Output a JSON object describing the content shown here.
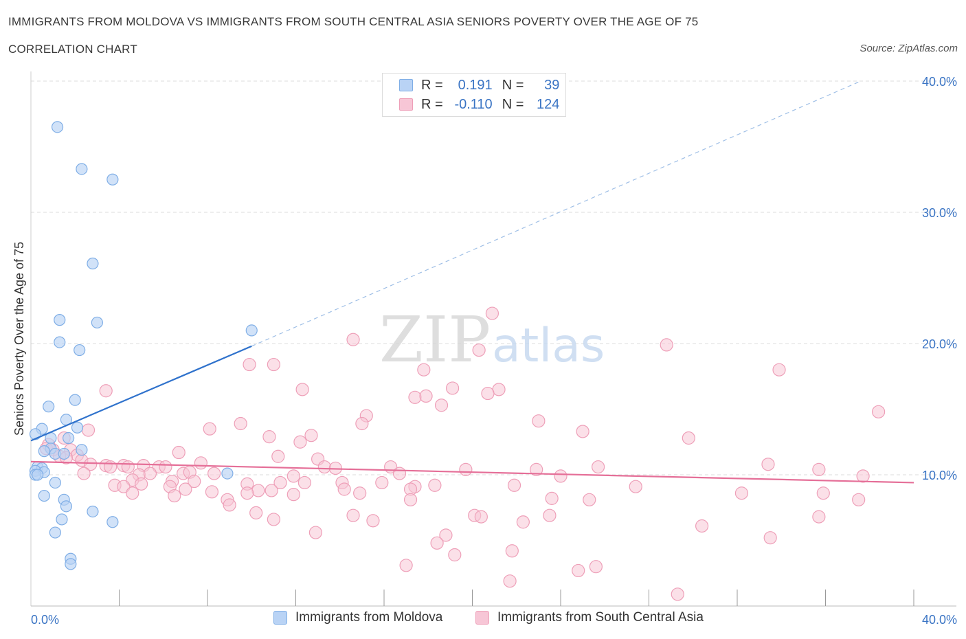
{
  "header": {
    "title": "IMMIGRANTS FROM MOLDOVA VS IMMIGRANTS FROM SOUTH CENTRAL ASIA SENIORS POVERTY OVER THE AGE OF 75",
    "subtitle": "CORRELATION CHART",
    "source": "Source: ZipAtlas.com"
  },
  "legend": {
    "rows": [
      {
        "r_label": "R =",
        "r_value": "0.191",
        "n_label": "N =",
        "n_value": "39"
      },
      {
        "r_label": "R =",
        "r_value": "-0.110",
        "n_label": "N =",
        "n_value": "124"
      }
    ]
  },
  "watermark": {
    "zip": "ZIP",
    "atlas": "atlas"
  },
  "colors": {
    "moldova_fill": "#b9d3f5",
    "moldova_stroke": "#7faee6",
    "moldova_line": "#2f72cc",
    "sca_fill": "#f7c6d6",
    "sca_stroke": "#ee9fb8",
    "sca_line": "#e56f98",
    "axis_label": "#3a74c4",
    "grid": "#dddddd"
  },
  "chart_data": {
    "type": "scatter",
    "ylabel": "Seniors Poverty Over the Age of 75",
    "xlabel": "",
    "xlim": [
      0,
      40
    ],
    "ylim": [
      0,
      40
    ],
    "x_ticks": [
      "0.0%",
      "40.0%"
    ],
    "y_ticks": [
      "10.0%",
      "20.0%",
      "30.0%",
      "40.0%"
    ],
    "y_tick_values": [
      10,
      20,
      30,
      40
    ],
    "grid": true,
    "legend_position": "top-center",
    "series": [
      {
        "name": "Immigrants from Moldova",
        "R": 0.191,
        "N": 39,
        "points": [
          [
            1.2,
            36.5
          ],
          [
            2.3,
            33.3
          ],
          [
            3.7,
            32.5
          ],
          [
            2.8,
            26.1
          ],
          [
            1.3,
            21.8
          ],
          [
            3.0,
            21.6
          ],
          [
            10.0,
            21.0
          ],
          [
            1.3,
            20.1
          ],
          [
            2.2,
            19.5
          ],
          [
            2.0,
            15.7
          ],
          [
            0.8,
            15.2
          ],
          [
            1.6,
            14.2
          ],
          [
            2.1,
            13.6
          ],
          [
            0.5,
            13.5
          ],
          [
            0.2,
            13.1
          ],
          [
            0.9,
            12.8
          ],
          [
            1.7,
            12.8
          ],
          [
            0.9,
            12.0
          ],
          [
            2.3,
            11.9
          ],
          [
            0.6,
            11.8
          ],
          [
            1.1,
            11.6
          ],
          [
            1.5,
            11.6
          ],
          [
            0.3,
            10.6
          ],
          [
            0.5,
            10.5
          ],
          [
            0.2,
            10.3
          ],
          [
            0.6,
            10.2
          ],
          [
            8.9,
            10.1
          ],
          [
            0.2,
            10.0
          ],
          [
            0.3,
            10.0
          ],
          [
            1.1,
            9.4
          ],
          [
            0.6,
            8.4
          ],
          [
            1.5,
            8.1
          ],
          [
            1.6,
            7.6
          ],
          [
            2.8,
            7.2
          ],
          [
            1.4,
            6.6
          ],
          [
            3.7,
            6.4
          ],
          [
            1.1,
            5.6
          ],
          [
            1.8,
            3.6
          ],
          [
            1.8,
            3.2
          ]
        ],
        "trend": {
          "x": [
            0,
            10
          ],
          "y": [
            12.6,
            19.8
          ]
        },
        "trend_extension": {
          "x": [
            10,
            37.6
          ],
          "y": [
            19.8,
            40.0
          ]
        }
      },
      {
        "name": "Immigrants from South Central Asia",
        "R": -0.11,
        "N": 124,
        "points": [
          [
            20.9,
            22.3
          ],
          [
            14.6,
            20.3
          ],
          [
            28.8,
            19.9
          ],
          [
            20.3,
            19.5
          ],
          [
            9.9,
            18.4
          ],
          [
            11.0,
            18.4
          ],
          [
            17.8,
            18.0
          ],
          [
            33.9,
            18.0
          ],
          [
            3.4,
            16.4
          ],
          [
            12.3,
            16.5
          ],
          [
            19.1,
            16.6
          ],
          [
            21.2,
            16.5
          ],
          [
            20.7,
            16.2
          ],
          [
            17.4,
            15.9
          ],
          [
            17.9,
            16.0
          ],
          [
            18.6,
            15.3
          ],
          [
            38.4,
            14.8
          ],
          [
            15.2,
            14.5
          ],
          [
            23.0,
            14.1
          ],
          [
            9.5,
            13.9
          ],
          [
            15.0,
            13.9
          ],
          [
            8.1,
            13.5
          ],
          [
            2.6,
            13.4
          ],
          [
            25.0,
            13.3
          ],
          [
            12.7,
            13.0
          ],
          [
            10.8,
            12.9
          ],
          [
            29.8,
            12.8
          ],
          [
            12.2,
            12.5
          ],
          [
            1.5,
            12.8
          ],
          [
            0.8,
            12.3
          ],
          [
            0.7,
            12.0
          ],
          [
            1.0,
            11.9
          ],
          [
            1.8,
            11.9
          ],
          [
            2.1,
            11.5
          ],
          [
            6.7,
            11.7
          ],
          [
            1.3,
            11.4
          ],
          [
            1.6,
            11.3
          ],
          [
            2.3,
            11.1
          ],
          [
            11.2,
            11.4
          ],
          [
            13.0,
            11.2
          ],
          [
            7.7,
            10.9
          ],
          [
            2.7,
            10.8
          ],
          [
            3.4,
            10.7
          ],
          [
            3.6,
            10.6
          ],
          [
            4.2,
            10.7
          ],
          [
            4.4,
            10.6
          ],
          [
            5.1,
            10.7
          ],
          [
            5.8,
            10.6
          ],
          [
            6.1,
            10.6
          ],
          [
            13.3,
            10.6
          ],
          [
            13.8,
            10.5
          ],
          [
            16.3,
            10.6
          ],
          [
            25.7,
            10.6
          ],
          [
            33.4,
            10.8
          ],
          [
            35.7,
            10.4
          ],
          [
            19.7,
            10.4
          ],
          [
            22.9,
            10.4
          ],
          [
            24.0,
            9.9
          ],
          [
            2.4,
            10.1
          ],
          [
            4.9,
            10.0
          ],
          [
            5.4,
            10.1
          ],
          [
            6.9,
            10.1
          ],
          [
            7.2,
            10.2
          ],
          [
            8.3,
            10.1
          ],
          [
            11.9,
            9.9
          ],
          [
            16.7,
            10.1
          ],
          [
            37.7,
            9.9
          ],
          [
            4.6,
            9.6
          ],
          [
            5.0,
            9.3
          ],
          [
            6.4,
            9.5
          ],
          [
            7.4,
            9.5
          ],
          [
            9.8,
            9.3
          ],
          [
            11.3,
            9.4
          ],
          [
            12.4,
            9.4
          ],
          [
            14.1,
            9.4
          ],
          [
            15.9,
            9.4
          ],
          [
            17.4,
            9.1
          ],
          [
            18.3,
            9.2
          ],
          [
            21.9,
            9.2
          ],
          [
            27.4,
            9.1
          ],
          [
            3.8,
            9.2
          ],
          [
            4.2,
            9.1
          ],
          [
            6.3,
            9.1
          ],
          [
            7.0,
            8.9
          ],
          [
            14.2,
            8.9
          ],
          [
            17.2,
            8.9
          ],
          [
            14.9,
            8.6
          ],
          [
            10.3,
            8.8
          ],
          [
            10.9,
            8.8
          ],
          [
            8.2,
            8.7
          ],
          [
            9.8,
            8.6
          ],
          [
            11.9,
            8.5
          ],
          [
            4.6,
            8.6
          ],
          [
            6.5,
            8.4
          ],
          [
            17.2,
            8.1
          ],
          [
            23.6,
            8.2
          ],
          [
            25.3,
            8.1
          ],
          [
            32.2,
            8.6
          ],
          [
            8.9,
            8.1
          ],
          [
            35.9,
            8.6
          ],
          [
            37.5,
            8.1
          ],
          [
            9.0,
            7.7
          ],
          [
            10.2,
            7.1
          ],
          [
            14.6,
            6.9
          ],
          [
            15.5,
            6.5
          ],
          [
            20.1,
            6.9
          ],
          [
            20.4,
            6.8
          ],
          [
            22.3,
            6.4
          ],
          [
            23.5,
            6.9
          ],
          [
            11.0,
            6.6
          ],
          [
            12.9,
            5.6
          ],
          [
            18.8,
            5.4
          ],
          [
            35.7,
            6.8
          ],
          [
            30.4,
            6.1
          ],
          [
            33.5,
            5.2
          ],
          [
            18.4,
            4.8
          ],
          [
            21.8,
            4.2
          ],
          [
            19.2,
            3.9
          ],
          [
            17.0,
            3.1
          ],
          [
            24.8,
            2.7
          ],
          [
            25.6,
            3.0
          ],
          [
            21.7,
            1.9
          ],
          [
            29.3,
            0.9
          ]
        ],
        "trend": {
          "x": [
            0,
            40
          ],
          "y": [
            11.0,
            9.4
          ]
        }
      }
    ]
  }
}
